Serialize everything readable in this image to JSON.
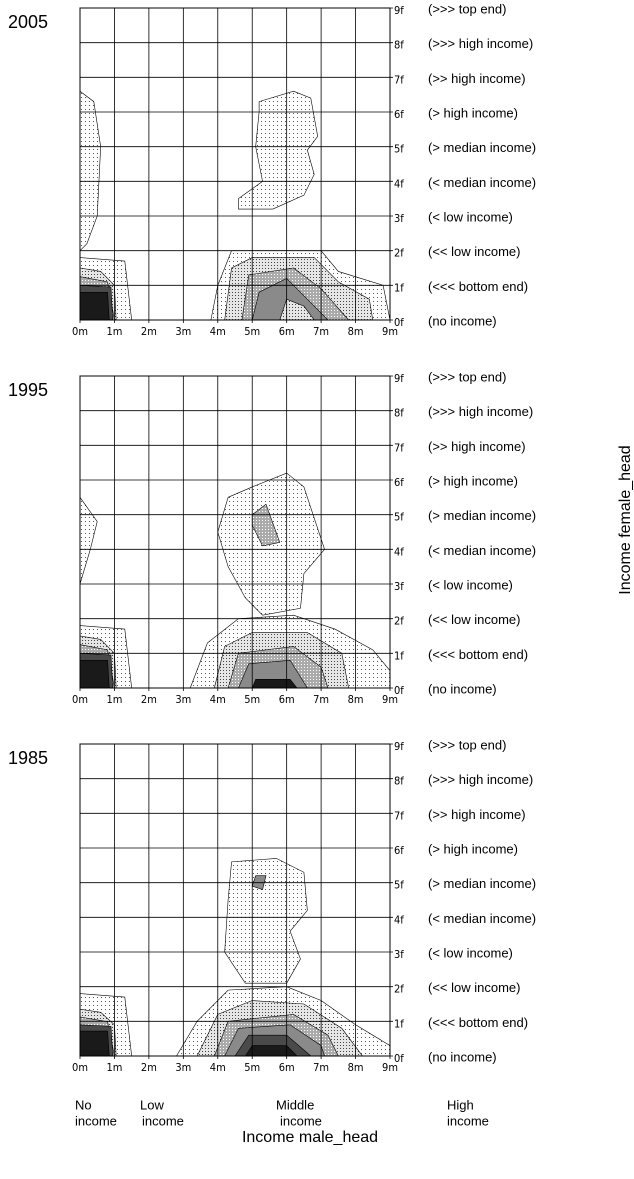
{
  "chart_data": [
    {
      "type": "contour",
      "title": "2005",
      "xlim": [
        0,
        9
      ],
      "ylim": [
        0,
        9
      ],
      "grid": true,
      "xticks": [
        {
          "value": 0,
          "label": "0m"
        },
        {
          "value": 1,
          "label": "1m"
        },
        {
          "value": 2,
          "label": "2m"
        },
        {
          "value": 3,
          "label": "3m"
        },
        {
          "value": 4,
          "label": "4m"
        },
        {
          "value": 5,
          "label": "5m"
        },
        {
          "value": 6,
          "label": "6m"
        },
        {
          "value": 7,
          "label": "7m"
        },
        {
          "value": 8,
          "label": "8m"
        },
        {
          "value": 9,
          "label": "9m"
        }
      ],
      "yticks": [
        {
          "value": 0,
          "label": "0f"
        },
        {
          "value": 1,
          "label": "1f"
        },
        {
          "value": 2,
          "label": "2f"
        },
        {
          "value": 3,
          "label": "3f"
        },
        {
          "value": 4,
          "label": "4f"
        },
        {
          "value": 5,
          "label": "5f"
        },
        {
          "value": 6,
          "label": "6f"
        },
        {
          "value": 7,
          "label": "7f"
        },
        {
          "value": 8,
          "label": "8f"
        },
        {
          "value": 9,
          "label": "9f"
        }
      ],
      "row_labels": [
        "(no income)",
        "(<<< bottom end)",
        "(<< low income)",
        "(< low income)",
        "(< median income)",
        "(> median income)",
        "(> high income)",
        "(>> high income)",
        "(>>> high income)",
        "(>>> top end)"
      ]
    },
    {
      "type": "contour",
      "title": "1995",
      "xlim": [
        0,
        9
      ],
      "ylim": [
        0,
        9
      ],
      "grid": true,
      "xticks": [
        {
          "value": 0,
          "label": "0m"
        },
        {
          "value": 1,
          "label": "1m"
        },
        {
          "value": 2,
          "label": "2m"
        },
        {
          "value": 3,
          "label": "3m"
        },
        {
          "value": 4,
          "label": "4m"
        },
        {
          "value": 5,
          "label": "5m"
        },
        {
          "value": 6,
          "label": "6m"
        },
        {
          "value": 7,
          "label": "7m"
        },
        {
          "value": 8,
          "label": "8m"
        },
        {
          "value": 9,
          "label": "9m"
        }
      ],
      "yticks": [
        {
          "value": 0,
          "label": "0f"
        },
        {
          "value": 1,
          "label": "1f"
        },
        {
          "value": 2,
          "label": "2f"
        },
        {
          "value": 3,
          "label": "3f"
        },
        {
          "value": 4,
          "label": "4f"
        },
        {
          "value": 5,
          "label": "5f"
        },
        {
          "value": 6,
          "label": "6f"
        },
        {
          "value": 7,
          "label": "7f"
        },
        {
          "value": 8,
          "label": "8f"
        },
        {
          "value": 9,
          "label": "9f"
        }
      ],
      "row_labels": [
        "(no income)",
        "(<<< bottom end)",
        "(<< low income)",
        "(< low income)",
        "(< median income)",
        "(> median income)",
        "(> high income)",
        "(>> high income)",
        "(>>> high income)",
        "(>>> top end)"
      ]
    },
    {
      "type": "contour",
      "title": "1985",
      "xlim": [
        0,
        9
      ],
      "ylim": [
        0,
        9
      ],
      "grid": true,
      "xticks": [
        {
          "value": 0,
          "label": "0m"
        },
        {
          "value": 1,
          "label": "1m"
        },
        {
          "value": 2,
          "label": "2m"
        },
        {
          "value": 3,
          "label": "3m"
        },
        {
          "value": 4,
          "label": "4m"
        },
        {
          "value": 5,
          "label": "5m"
        },
        {
          "value": 6,
          "label": "6m"
        },
        {
          "value": 7,
          "label": "7m"
        },
        {
          "value": 8,
          "label": "8m"
        },
        {
          "value": 9,
          "label": "9m"
        }
      ],
      "yticks": [
        {
          "value": 0,
          "label": "0f"
        },
        {
          "value": 1,
          "label": "1f"
        },
        {
          "value": 2,
          "label": "2f"
        },
        {
          "value": 3,
          "label": "3f"
        },
        {
          "value": 4,
          "label": "4f"
        },
        {
          "value": 5,
          "label": "5f"
        },
        {
          "value": 6,
          "label": "6f"
        },
        {
          "value": 7,
          "label": "7f"
        },
        {
          "value": 8,
          "label": "8f"
        },
        {
          "value": 9,
          "label": "9f"
        }
      ],
      "row_labels": [
        "(no income)",
        "(<<< bottom end)",
        "(<< low income)",
        "(< low income)",
        "(< median income)",
        "(> median income)",
        "(> high income)",
        "(>> high income)",
        "(>>> high income)",
        "(>>> top end)"
      ]
    }
  ],
  "figure": {
    "x_label": "Income male_head",
    "y_label": "Income female_head",
    "income_groups": [
      [
        "No",
        "income"
      ],
      [
        "Low",
        "income"
      ],
      [
        "Middle",
        "income"
      ],
      [
        "High",
        "income"
      ]
    ]
  }
}
